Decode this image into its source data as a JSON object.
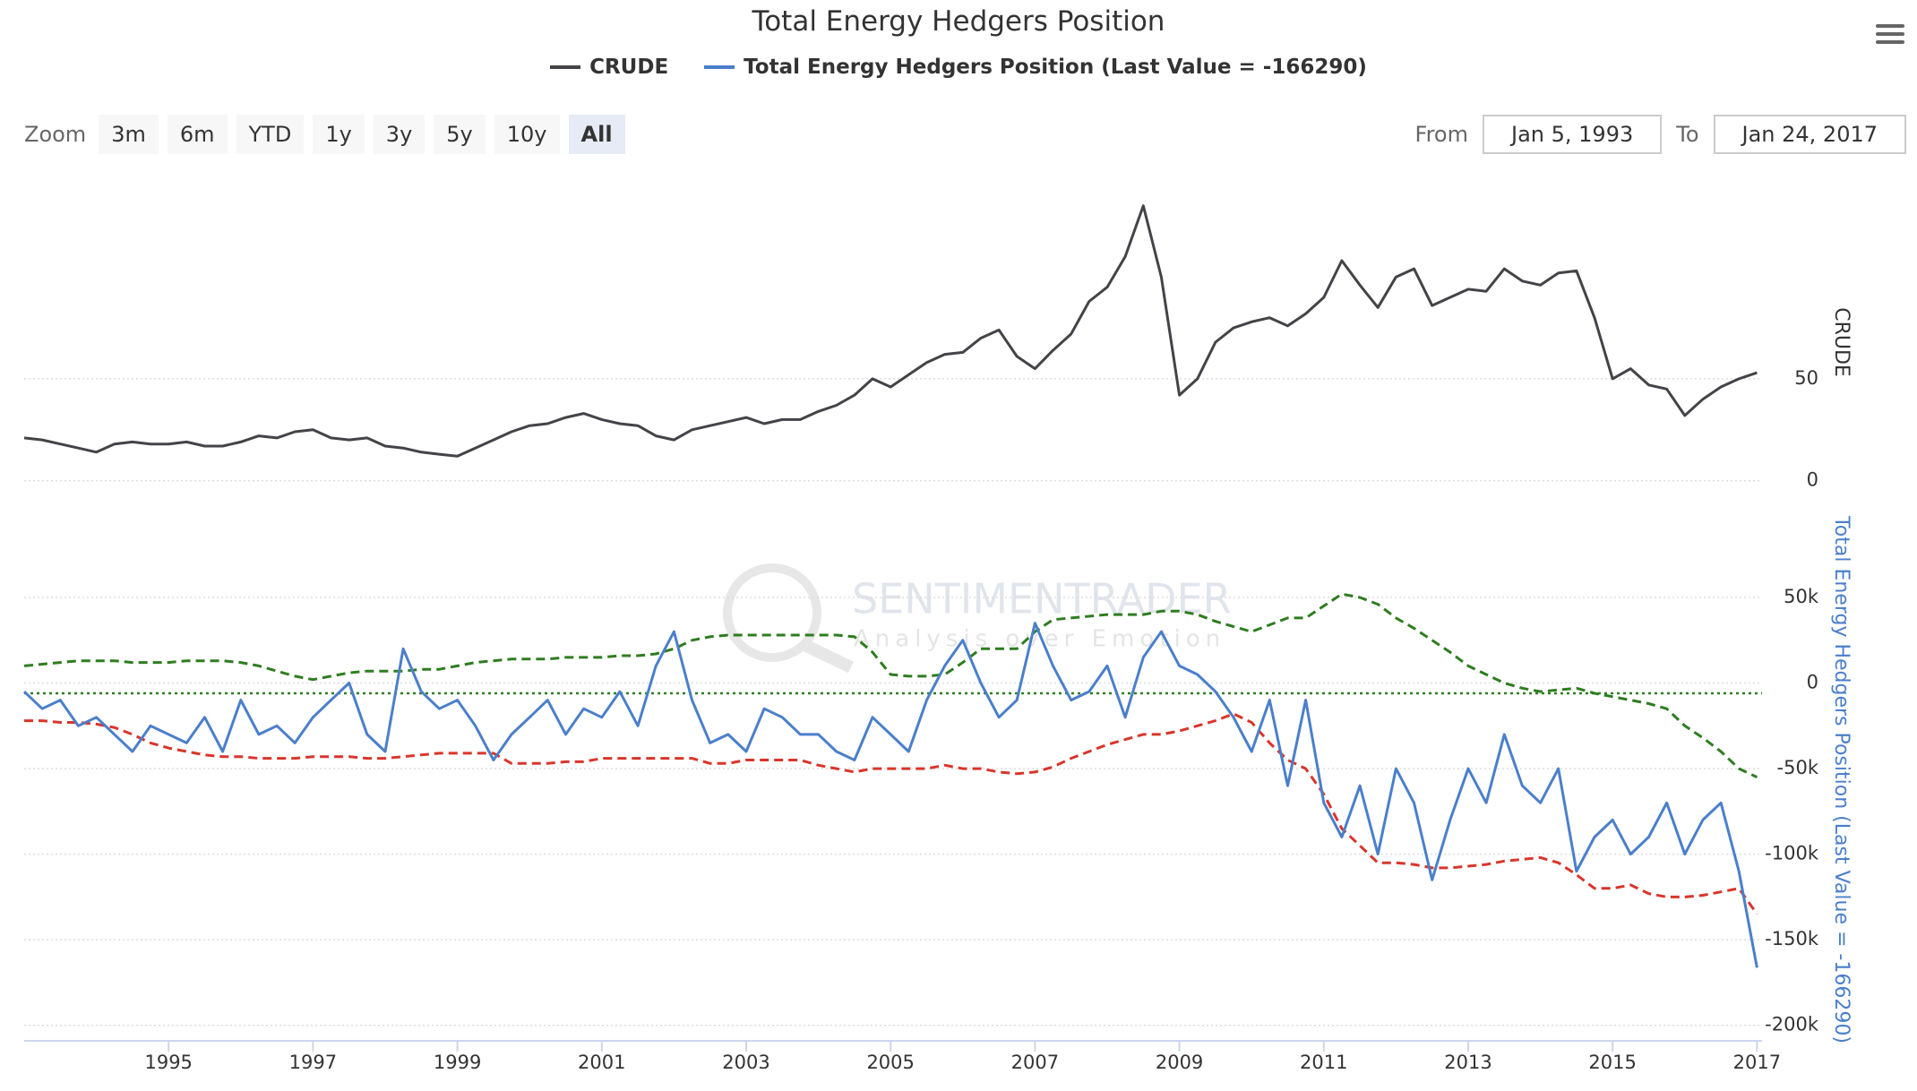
{
  "title": "Total Energy Hedgers Position",
  "controls": {
    "zoom_label": "Zoom",
    "zoom_buttons": [
      "3m",
      "6m",
      "YTD",
      "1y",
      "3y",
      "5y",
      "10y",
      "All"
    ],
    "selected_zoom_index": 7,
    "from_label": "From",
    "from": "Jan 5, 1993",
    "to_label": "To",
    "to": "Jan 24, 2017"
  },
  "watermark": {
    "brand": "SENTIMENTRADER",
    "tagline": "Analysis over Emotion"
  },
  "chart_data": [
    {
      "type": "line",
      "ylabel": "CRUDE",
      "xlim": [
        1993.0,
        2017.07
      ],
      "ylim": [
        -16,
        152
      ],
      "yticks": [
        0,
        50
      ],
      "grid": true,
      "x": [
        1993,
        1993.25,
        1993.5,
        1993.75,
        1994,
        1994.25,
        1994.5,
        1994.75,
        1995,
        1995.25,
        1995.5,
        1995.75,
        1996,
        1996.25,
        1996.5,
        1996.75,
        1997,
        1997.25,
        1997.5,
        1997.75,
        1998,
        1998.25,
        1998.5,
        1998.75,
        1999,
        1999.25,
        1999.5,
        1999.75,
        2000,
        2000.25,
        2000.5,
        2000.75,
        2001,
        2001.25,
        2001.5,
        2001.75,
        2002,
        2002.25,
        2002.5,
        2002.75,
        2003,
        2003.25,
        2003.5,
        2003.75,
        2004,
        2004.25,
        2004.5,
        2004.75,
        2005,
        2005.25,
        2005.5,
        2005.75,
        2006,
        2006.25,
        2006.5,
        2006.75,
        2007,
        2007.25,
        2007.5,
        2007.75,
        2008,
        2008.25,
        2008.5,
        2008.75,
        2009,
        2009.25,
        2009.5,
        2009.75,
        2010,
        2010.25,
        2010.5,
        2010.75,
        2011,
        2011.25,
        2011.5,
        2011.75,
        2012,
        2012.25,
        2012.5,
        2012.75,
        2013,
        2013.25,
        2013.5,
        2013.75,
        2014,
        2014.25,
        2014.5,
        2014.75,
        2015,
        2015.25,
        2015.5,
        2015.75,
        2016,
        2016.25,
        2016.5,
        2016.75,
        2017
      ],
      "series": [
        {
          "name": "CRUDE",
          "color": "#434348",
          "dash": "solid",
          "values": [
            21,
            20,
            18,
            16,
            14,
            18,
            19,
            18,
            18,
            19,
            17,
            17,
            19,
            22,
            21,
            24,
            25,
            21,
            20,
            21,
            17,
            16,
            14,
            13,
            12,
            16,
            20,
            24,
            27,
            28,
            31,
            33,
            30,
            28,
            27,
            22,
            20,
            25,
            27,
            29,
            31,
            28,
            30,
            30,
            34,
            37,
            42,
            50,
            46,
            52,
            58,
            62,
            63,
            70,
            74,
            61,
            55,
            64,
            72,
            88,
            95,
            110,
            135,
            100,
            42,
            50,
            68,
            75,
            78,
            80,
            76,
            82,
            90,
            108,
            96,
            85,
            100,
            104,
            86,
            90,
            94,
            93,
            104,
            98,
            96,
            102,
            103,
            80,
            50,
            55,
            47,
            45,
            32,
            40,
            46,
            50,
            53
          ]
        }
      ]
    },
    {
      "type": "line",
      "ylabel": "Total Energy Hedgers Position (Last Value = -166290)",
      "xlim": [
        1993.0,
        2017.07
      ],
      "ylim": [
        -208000,
        95000
      ],
      "yticks": [
        {
          "value": 50000,
          "label": "50k"
        },
        0,
        {
          "value": -50000,
          "label": "-50k"
        },
        {
          "value": -100000,
          "label": "-100k"
        },
        {
          "value": -150000,
          "label": "-150k"
        },
        {
          "value": -200000,
          "label": "-200k"
        }
      ],
      "grid": true,
      "xticks": [
        1995,
        1997,
        1999,
        2001,
        2003,
        2005,
        2007,
        2009,
        2011,
        2013,
        2015,
        2017
      ],
      "hlines": [
        {
          "value": -6000,
          "color": "#2e7d1f",
          "style": "dotted"
        }
      ],
      "x": [
        1993,
        1993.25,
        1993.5,
        1993.75,
        1994,
        1994.25,
        1994.5,
        1994.75,
        1995,
        1995.25,
        1995.5,
        1995.75,
        1996,
        1996.25,
        1996.5,
        1996.75,
        1997,
        1997.25,
        1997.5,
        1997.75,
        1998,
        1998.25,
        1998.5,
        1998.75,
        1999,
        1999.25,
        1999.5,
        1999.75,
        2000,
        2000.25,
        2000.5,
        2000.75,
        2001,
        2001.25,
        2001.5,
        2001.75,
        2002,
        2002.25,
        2002.5,
        2002.75,
        2003,
        2003.25,
        2003.5,
        2003.75,
        2004,
        2004.25,
        2004.5,
        2004.75,
        2005,
        2005.25,
        2005.5,
        2005.75,
        2006,
        2006.25,
        2006.5,
        2006.75,
        2007,
        2007.25,
        2007.5,
        2007.75,
        2008,
        2008.25,
        2008.5,
        2008.75,
        2009,
        2009.25,
        2009.5,
        2009.75,
        2010,
        2010.25,
        2010.5,
        2010.75,
        2011,
        2011.25,
        2011.5,
        2011.75,
        2012,
        2012.25,
        2012.5,
        2012.75,
        2013,
        2013.25,
        2013.5,
        2013.75,
        2014,
        2014.25,
        2014.5,
        2014.75,
        2015,
        2015.25,
        2015.5,
        2015.75,
        2016,
        2016.25,
        2016.5,
        2016.75,
        2017
      ],
      "series": [
        {
          "color": "#2e7d1f",
          "dash": "dashed",
          "values": [
            10000,
            11000,
            12000,
            13000,
            13000,
            13000,
            12000,
            12000,
            12000,
            13000,
            13000,
            13000,
            12000,
            10000,
            7000,
            4000,
            2000,
            4000,
            6000,
            7000,
            7000,
            7000,
            8000,
            8000,
            10000,
            12000,
            13000,
            14000,
            14000,
            14000,
            15000,
            15000,
            15000,
            16000,
            16000,
            17000,
            20000,
            25000,
            27000,
            28000,
            28000,
            28000,
            28000,
            28000,
            28000,
            28000,
            27000,
            18000,
            5000,
            4000,
            4000,
            5000,
            12000,
            20000,
            20000,
            20000,
            30000,
            37000,
            38000,
            39000,
            40000,
            40000,
            40000,
            42000,
            42000,
            40000,
            36000,
            33000,
            30000,
            34000,
            38000,
            38000,
            45000,
            52000,
            50000,
            46000,
            38000,
            32000,
            25000,
            18000,
            10000,
            5000,
            0,
            -3000,
            -5000,
            -4000,
            -3000,
            -6000,
            -8000,
            -10000,
            -12000,
            -15000,
            -25000,
            -32000,
            -40000,
            -50000,
            -55000
          ]
        },
        {
          "color": "#d9352b",
          "dash": "dashed",
          "values": [
            -22000,
            -22000,
            -23000,
            -23000,
            -24000,
            -26000,
            -30000,
            -35000,
            -38000,
            -40000,
            -42000,
            -43000,
            -43000,
            -44000,
            -44000,
            -44000,
            -43000,
            -43000,
            -43000,
            -44000,
            -44000,
            -43000,
            -42000,
            -41000,
            -41000,
            -41000,
            -41000,
            -47000,
            -47000,
            -47000,
            -46000,
            -46000,
            -44000,
            -44000,
            -44000,
            -44000,
            -44000,
            -44000,
            -47000,
            -47000,
            -45000,
            -45000,
            -45000,
            -45000,
            -48000,
            -50000,
            -52000,
            -50000,
            -50000,
            -50000,
            -50000,
            -48000,
            -50000,
            -50000,
            -52000,
            -53000,
            -52000,
            -49000,
            -44000,
            -40000,
            -36000,
            -33000,
            -30000,
            -30000,
            -28000,
            -25000,
            -22000,
            -18000,
            -23000,
            -35000,
            -45000,
            -50000,
            -65000,
            -85000,
            -95000,
            -105000,
            -105000,
            -106000,
            -108000,
            -108000,
            -107000,
            -106000,
            -104000,
            -103000,
            -102000,
            -105000,
            -112000,
            -120000,
            -120000,
            -118000,
            -123000,
            -125000,
            -125000,
            -124000,
            -122000,
            -120000,
            -135000
          ]
        },
        {
          "name": "Total Energy Hedgers Position (Last Value = -166290)",
          "color": "#4a7fcb",
          "dash": "solid",
          "values": [
            -5000,
            -15000,
            -10000,
            -25000,
            -20000,
            -30000,
            -40000,
            -25000,
            -30000,
            -35000,
            -20000,
            -40000,
            -10000,
            -30000,
            -25000,
            -35000,
            -20000,
            -10000,
            0,
            -30000,
            -40000,
            20000,
            -5000,
            -15000,
            -10000,
            -25000,
            -45000,
            -30000,
            -20000,
            -10000,
            -30000,
            -15000,
            -20000,
            -5000,
            -25000,
            10000,
            30000,
            -10000,
            -35000,
            -30000,
            -40000,
            -15000,
            -20000,
            -30000,
            -30000,
            -40000,
            -45000,
            -20000,
            -30000,
            -40000,
            -10000,
            10000,
            25000,
            0,
            -20000,
            -10000,
            35000,
            10000,
            -10000,
            -5000,
            10000,
            -20000,
            15000,
            30000,
            10000,
            5000,
            -5000,
            -20000,
            -40000,
            -10000,
            -60000,
            -10000,
            -70000,
            -90000,
            -60000,
            -100000,
            -50000,
            -70000,
            -115000,
            -80000,
            -50000,
            -70000,
            -30000,
            -60000,
            -70000,
            -50000,
            -110000,
            -90000,
            -80000,
            -100000,
            -90000,
            -70000,
            -100000,
            -80000,
            -70000,
            -110000,
            -166290
          ]
        }
      ]
    }
  ]
}
